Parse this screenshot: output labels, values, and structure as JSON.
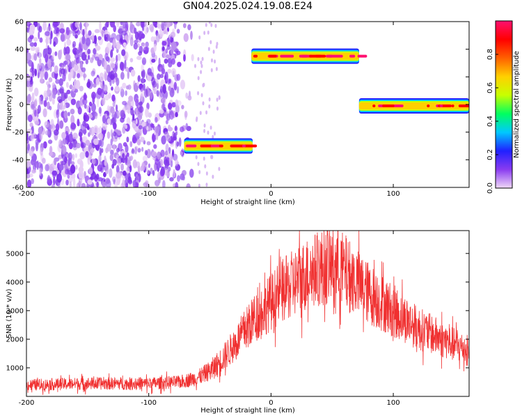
{
  "title": "GN04.2025.024.19.08.E24",
  "chart_data": [
    {
      "type": "heatmap",
      "name": "spectrogram",
      "xlabel": "Height of straight line (km)",
      "ylabel": "Frequency (Hz)",
      "xlim": [
        -200,
        162
      ],
      "ylim": [
        -60,
        60
      ],
      "xticks": [
        -200,
        -100,
        0,
        100
      ],
      "yticks": [
        -60,
        -40,
        -20,
        0,
        20,
        40,
        60
      ],
      "colorbar": {
        "label": "Normalized spectral amplitude",
        "range": [
          0,
          1
        ],
        "ticks": [
          "0.0",
          "0.2",
          "0.4",
          "0.6",
          "0.8"
        ],
        "colors": [
          "#f0d8f8",
          "#8a3cf0",
          "#2020ff",
          "#00c8ff",
          "#00ff60",
          "#c8ff00",
          "#ffd000",
          "#ff6000",
          "#ff0000",
          "#ff1070"
        ]
      },
      "noise_region": {
        "x_start": -200,
        "x_end": -62,
        "y_start": -60,
        "y_end": 60,
        "amplitude": 0.2
      },
      "bands": [
        {
          "x_start": -71,
          "x_end": -15,
          "freq": -30,
          "amplitude": 1.0
        },
        {
          "x_start": -16,
          "x_end": 72,
          "freq": 35,
          "amplitude": 1.0
        },
        {
          "x_start": 72,
          "x_end": 162,
          "freq": -1,
          "amplitude": 1.0
        }
      ]
    },
    {
      "type": "line",
      "name": "snr",
      "xlabel": "Height of straight line (km)",
      "ylabel": "SNR (10 * v/v)",
      "xlim": [
        -200,
        162
      ],
      "ylim": [
        0,
        5800
      ],
      "xticks": [
        -200,
        -100,
        0,
        100
      ],
      "yticks": [
        1000,
        2000,
        3000,
        4000,
        5000
      ],
      "color": "#f03030",
      "trend": {
        "x": [
          -200,
          -150,
          -100,
          -75,
          -60,
          -50,
          -40,
          -30,
          -20,
          -10,
          0,
          10,
          20,
          30,
          40,
          50,
          55,
          60,
          70,
          80,
          90,
          100,
          110,
          120,
          130,
          140,
          150,
          162
        ],
        "y": [
          400,
          450,
          450,
          500,
          650,
          900,
          1300,
          1800,
          2400,
          2900,
          3300,
          3700,
          4000,
          4300,
          4500,
          4600,
          4550,
          4400,
          4000,
          3600,
          3300,
          3000,
          2700,
          2400,
          2200,
          2000,
          1800,
          1600
        ]
      }
    }
  ]
}
